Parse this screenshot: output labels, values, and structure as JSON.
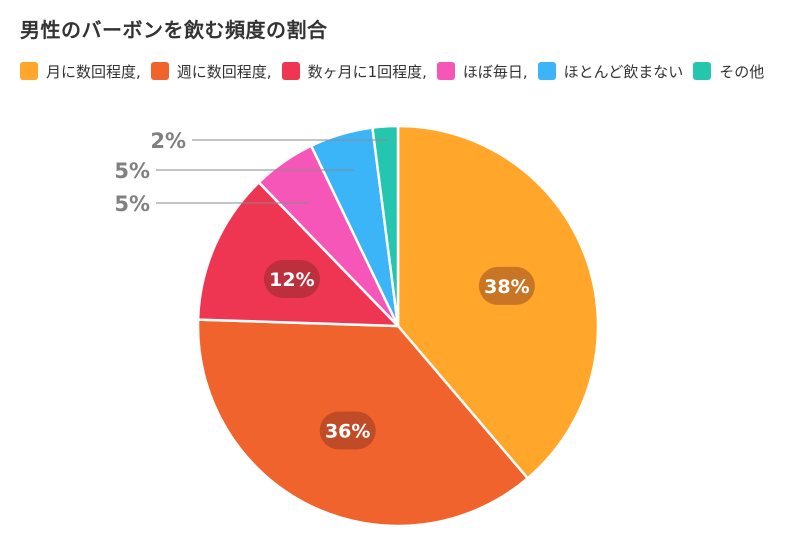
{
  "chart_data": {
    "type": "pie",
    "title": "男性のバーボンを飲む頻度の割合",
    "legend_position": "top",
    "categories": [
      "月に数回程度",
      "週に数回程度",
      "数ヶ月に1回程度",
      "ほぼ毎日",
      "ほとんど飲まない",
      "その他"
    ],
    "values": [
      38,
      36,
      12,
      5,
      5,
      2
    ],
    "data_labels": [
      "38%",
      "36%",
      "12%",
      "5%",
      "5%",
      "2%"
    ],
    "legend_labels": [
      "月に数回程度,",
      "週に数回程度,",
      "数ヶ月に1回程度,",
      "ほぼ毎日,",
      "ほとんど飲まない",
      "その他"
    ],
    "colors": [
      "#FFA62B",
      "#F0632C",
      "#EE3552",
      "#F656B8",
      "#3BB4F8",
      "#25C6B0"
    ]
  }
}
